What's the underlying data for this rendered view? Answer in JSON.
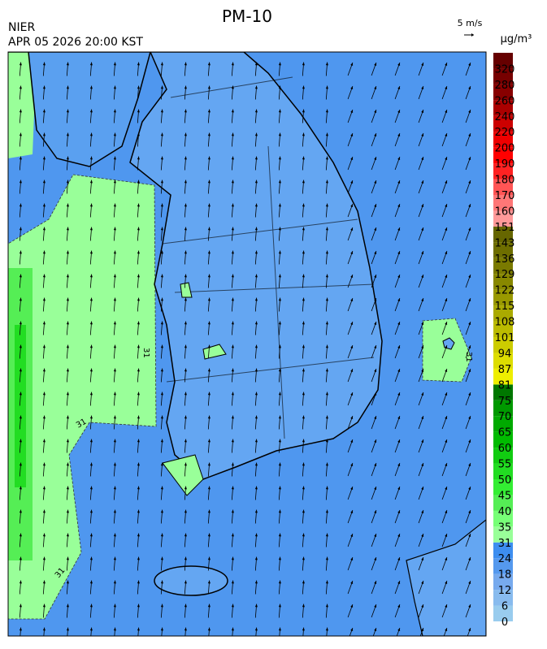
{
  "header": {
    "title": "PM-10",
    "agency": "NIER",
    "datetime": "APR 05 2026 20:00 KST"
  },
  "wind_scale": {
    "label": "5 m/s"
  },
  "map": {
    "contour_labels": [
      "31",
      "31",
      "31",
      "31"
    ]
  },
  "colorbar": {
    "unit": "μg/m³",
    "levels": [
      0,
      6,
      12,
      18,
      24,
      31,
      35,
      40,
      45,
      50,
      55,
      60,
      65,
      70,
      75,
      81,
      87,
      94,
      101,
      108,
      115,
      122,
      129,
      136,
      143,
      151,
      160,
      170,
      180,
      190,
      200,
      220,
      240,
      260,
      280,
      320
    ],
    "colors": [
      "#99ccee",
      "#88bbee",
      "#77aaee",
      "#5599ee",
      "#3d8ef0",
      "#99ff99",
      "#77ff77",
      "#55ee55",
      "#33ee33",
      "#22dd22",
      "#11cc11",
      "#00bb00",
      "#00aa00",
      "#009900",
      "#007700",
      "#eeee00",
      "#dddd00",
      "#cccc00",
      "#bbbb00",
      "#aaaa00",
      "#999900",
      "#888800",
      "#7a7a00",
      "#6e6e00",
      "#666600",
      "#ff9999",
      "#ff7777",
      "#ff5555",
      "#ff2222",
      "#ff0000",
      "#ee0000",
      "#cc0000",
      "#aa0000",
      "#880000",
      "#770000",
      "#660000"
    ]
  }
}
